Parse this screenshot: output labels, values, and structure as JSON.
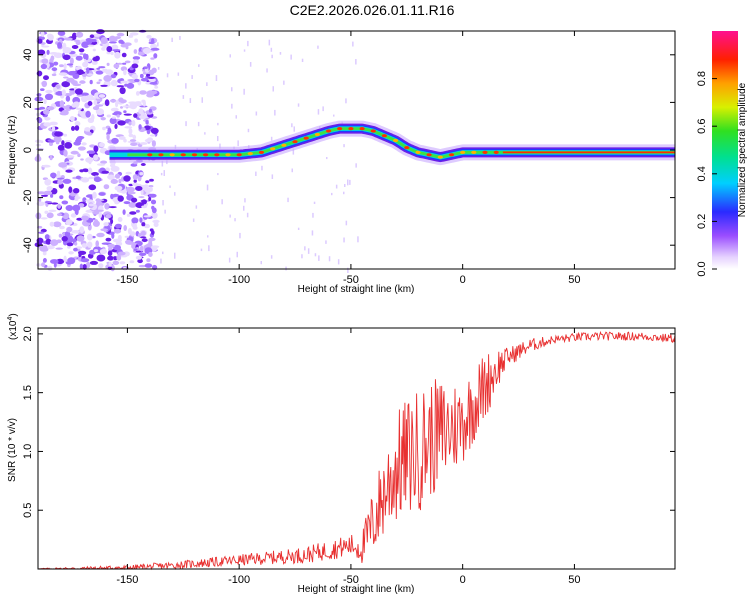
{
  "title": "C2E2.2026.026.01.11.R16",
  "chart_data": [
    {
      "type": "heatmap",
      "name": "spectrogram",
      "xlabel": "Height of straight line (km)",
      "ylabel": "Frequency (Hz)",
      "xlim": [
        -190,
        95
      ],
      "ylim": [
        -50,
        50
      ],
      "xticks": [
        -150,
        -100,
        -50,
        0,
        50
      ],
      "yticks": [
        -40,
        -20,
        0,
        20,
        40
      ],
      "colorbar": {
        "label": "Normalized spectral amplitude",
        "range": [
          0,
          1
        ],
        "ticks": [
          0.0,
          0.2,
          0.4,
          0.6,
          0.8
        ]
      },
      "ridge": {
        "x": [
          -155,
          -140,
          -120,
          -100,
          -90,
          -80,
          -70,
          -60,
          -55,
          -50,
          -45,
          -40,
          -35,
          -30,
          -25,
          -20,
          -15,
          -10,
          -5,
          0,
          5,
          10,
          15,
          20,
          50,
          95
        ],
        "y": [
          -2,
          -2,
          -2,
          -2,
          -1,
          2,
          5,
          8,
          9,
          9,
          9,
          8,
          6,
          4,
          1,
          -1,
          -2,
          -3,
          -2,
          -1,
          -1,
          -1,
          -1,
          -1,
          -1,
          -1
        ]
      }
    },
    {
      "type": "line",
      "name": "snr",
      "xlabel": "Height of straight line (km)",
      "ylabel": "SNR (10 * v/v)",
      "y_multiplier": "(x10",
      "y_multiplier_exp": "4",
      "y_multiplier_close": ")",
      "xlim": [
        -190,
        95
      ],
      "ylim": [
        0,
        20500
      ],
      "xticks": [
        -150,
        -100,
        -50,
        0,
        50
      ],
      "yticks": [
        {
          "value": 5000,
          "label": "0.5"
        },
        {
          "value": 10000,
          "label": "1.0"
        },
        {
          "value": 15000,
          "label": "1.5"
        },
        {
          "value": 20000,
          "label": "2.0"
        }
      ],
      "series_color": "#e83030",
      "trend": {
        "x": [
          -190,
          -150,
          -130,
          -110,
          -90,
          -70,
          -60,
          -50,
          -45,
          -40,
          -35,
          -30,
          -25,
          -20,
          -15,
          -10,
          -5,
          0,
          5,
          10,
          15,
          20,
          30,
          40,
          50,
          60,
          70,
          80,
          95
        ],
        "y": [
          0,
          100,
          300,
          600,
          900,
          1200,
          1600,
          2000,
          1800,
          4000,
          6500,
          8500,
          9500,
          10000,
          11000,
          11500,
          12000,
          12500,
          14000,
          15500,
          17000,
          18000,
          19000,
          19500,
          19700,
          19800,
          19800,
          19800,
          19600
        ]
      },
      "noise": {
        "x": [
          -190,
          -120,
          -80,
          -60,
          -50,
          -45,
          -40,
          -30,
          -20,
          -10,
          0,
          10,
          20,
          40,
          95
        ],
        "amp": [
          50,
          300,
          500,
          700,
          800,
          1200,
          2500,
          4000,
          4500,
          4000,
          3000,
          2500,
          700,
          300,
          300
        ]
      }
    }
  ]
}
